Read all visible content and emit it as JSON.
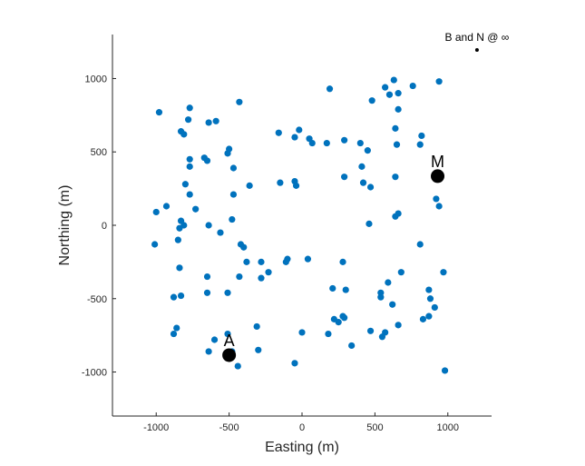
{
  "chart_data": {
    "type": "scatter",
    "title": "",
    "xlabel": "Easting (m)",
    "ylabel": "Northing (m)",
    "xlim": [
      -1300,
      1300
    ],
    "ylim": [
      -1300,
      1300
    ],
    "xticks": [
      -1000,
      -500,
      0,
      500,
      1000
    ],
    "yticks": [
      -1000,
      -500,
      0,
      500,
      1000
    ],
    "grid": false,
    "colors": {
      "points": "#0072bd",
      "annotations": "#000000",
      "axis": "#262626"
    },
    "series": [
      {
        "values": [
          [
            -980,
            770
          ],
          [
            -930,
            130
          ],
          [
            -1000,
            90
          ],
          [
            -1010,
            -130
          ],
          [
            -770,
            800
          ],
          [
            -780,
            720
          ],
          [
            -830,
            640
          ],
          [
            -810,
            620
          ],
          [
            -830,
            30
          ],
          [
            -840,
            -20
          ],
          [
            -810,
            0
          ],
          [
            -850,
            -100
          ],
          [
            -840,
            -290
          ],
          [
            -880,
            -490
          ],
          [
            -830,
            -480
          ],
          [
            -860,
            -700
          ],
          [
            -880,
            -740
          ],
          [
            -770,
            450
          ],
          [
            -770,
            400
          ],
          [
            -800,
            280
          ],
          [
            -770,
            210
          ],
          [
            -730,
            110
          ],
          [
            -670,
            460
          ],
          [
            -650,
            440
          ],
          [
            -640,
            700
          ],
          [
            -590,
            710
          ],
          [
            -500,
            520
          ],
          [
            -510,
            490
          ],
          [
            -470,
            390
          ],
          [
            -470,
            210
          ],
          [
            -480,
            40
          ],
          [
            -640,
            0
          ],
          [
            -560,
            -50
          ],
          [
            -650,
            -350
          ],
          [
            -650,
            -460
          ],
          [
            -600,
            -780
          ],
          [
            -640,
            -860
          ],
          [
            -430,
            840
          ],
          [
            -360,
            270
          ],
          [
            -420,
            -130
          ],
          [
            -400,
            -150
          ],
          [
            -380,
            -250
          ],
          [
            -430,
            -350
          ],
          [
            -510,
            -460
          ],
          [
            -510,
            -740
          ],
          [
            -480,
            -860
          ],
          [
            -440,
            -960
          ],
          [
            -310,
            -690
          ],
          [
            -300,
            -850
          ],
          [
            -280,
            -250
          ],
          [
            -280,
            -360
          ],
          [
            -230,
            -320
          ],
          [
            -160,
            630
          ],
          [
            -150,
            290
          ],
          [
            -100,
            -230
          ],
          [
            -110,
            -250
          ],
          [
            -50,
            600
          ],
          [
            -50,
            300
          ],
          [
            -40,
            270
          ],
          [
            -20,
            650
          ],
          [
            50,
            590
          ],
          [
            70,
            560
          ],
          [
            40,
            -230
          ],
          [
            0,
            -730
          ],
          [
            -50,
            -940
          ],
          [
            170,
            560
          ],
          [
            190,
            930
          ],
          [
            210,
            -430
          ],
          [
            220,
            -640
          ],
          [
            250,
            -660
          ],
          [
            180,
            -740
          ],
          [
            290,
            580
          ],
          [
            290,
            330
          ],
          [
            280,
            -250
          ],
          [
            300,
            -440
          ],
          [
            280,
            -620
          ],
          [
            290,
            -630
          ],
          [
            340,
            -820
          ],
          [
            400,
            560
          ],
          [
            410,
            400
          ],
          [
            420,
            290
          ],
          [
            450,
            510
          ],
          [
            470,
            260
          ],
          [
            460,
            10
          ],
          [
            480,
            850
          ],
          [
            540,
            -460
          ],
          [
            540,
            -490
          ],
          [
            470,
            -720
          ],
          [
            550,
            -760
          ],
          [
            570,
            -730
          ],
          [
            570,
            940
          ],
          [
            600,
            890
          ],
          [
            630,
            990
          ],
          [
            660,
            900
          ],
          [
            660,
            790
          ],
          [
            640,
            660
          ],
          [
            650,
            550
          ],
          [
            640,
            330
          ],
          [
            640,
            60
          ],
          [
            660,
            80
          ],
          [
            590,
            -390
          ],
          [
            620,
            -540
          ],
          [
            660,
            -680
          ],
          [
            680,
            -320
          ],
          [
            760,
            950
          ],
          [
            810,
            550
          ],
          [
            820,
            610
          ],
          [
            810,
            -130
          ],
          [
            830,
            -640
          ],
          [
            870,
            -440
          ],
          [
            880,
            -500
          ],
          [
            870,
            -620
          ],
          [
            910,
            -560
          ],
          [
            920,
            180
          ],
          [
            940,
            130
          ],
          [
            940,
            980
          ],
          [
            970,
            -320
          ],
          [
            980,
            -990
          ]
        ]
      }
    ],
    "annotations": [
      {
        "label": "A",
        "x": -500,
        "y": -885
      },
      {
        "label": "M",
        "x": 930,
        "y": 335
      },
      {
        "label": "B and N @ ∞",
        "x": 1200,
        "y": 1195
      }
    ]
  }
}
